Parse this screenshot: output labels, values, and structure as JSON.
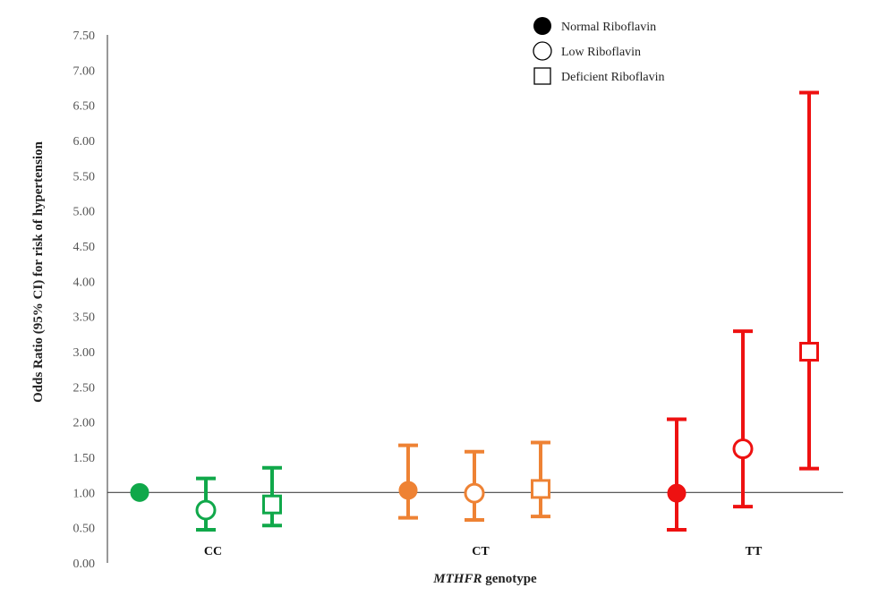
{
  "chart_data": {
    "type": "scatter",
    "subtype": "error-bar",
    "xlabel_italic": "MTHFR",
    "xlabel_rest": " genotype",
    "ylabel": "Odds Ratio (95% CI) for risk of hypertension",
    "ylim": [
      0,
      7.5
    ],
    "ytick_step": 0.5,
    "yticks": [
      "0.00",
      "0.50",
      "1.00",
      "1.50",
      "2.00",
      "2.50",
      "3.00",
      "3.50",
      "4.00",
      "4.50",
      "5.00",
      "5.50",
      "6.00",
      "6.50",
      "7.00",
      "7.50"
    ],
    "reference_line": 1.0,
    "legend_position": "top-right",
    "legend": [
      {
        "label": "Normal Riboflavin",
        "marker": "filled-circle"
      },
      {
        "label": "Low Riboflavin",
        "marker": "open-circle"
      },
      {
        "label": "Deficient  Riboflavin",
        "marker": "open-square"
      }
    ],
    "categories": [
      {
        "name": "CC",
        "color": "#10a84a",
        "points": [
          {
            "series": "Normal Riboflavin",
            "or": 1.0,
            "lower": null,
            "upper": null
          },
          {
            "series": "Low Riboflavin",
            "or": 0.75,
            "lower": 0.47,
            "upper": 1.2
          },
          {
            "series": "Deficient  Riboflavin",
            "or": 0.83,
            "lower": 0.53,
            "upper": 1.35
          }
        ]
      },
      {
        "name": "CT",
        "color": "#ee8234",
        "points": [
          {
            "series": "Normal Riboflavin",
            "or": 1.03,
            "lower": 0.64,
            "upper": 1.67
          },
          {
            "series": "Low Riboflavin",
            "or": 0.99,
            "lower": 0.61,
            "upper": 1.58
          },
          {
            "series": "Deficient  Riboflavin",
            "or": 1.05,
            "lower": 0.66,
            "upper": 1.71
          }
        ]
      },
      {
        "name": "TT",
        "color": "#ee1111",
        "points": [
          {
            "series": "Normal Riboflavin",
            "or": 0.99,
            "lower": 0.47,
            "upper": 2.04
          },
          {
            "series": "Low Riboflavin",
            "or": 1.62,
            "lower": 0.8,
            "upper": 3.29
          },
          {
            "series": "Deficient  Riboflavin",
            "or": 3.0,
            "lower": 1.34,
            "upper": 6.68
          }
        ]
      }
    ]
  }
}
